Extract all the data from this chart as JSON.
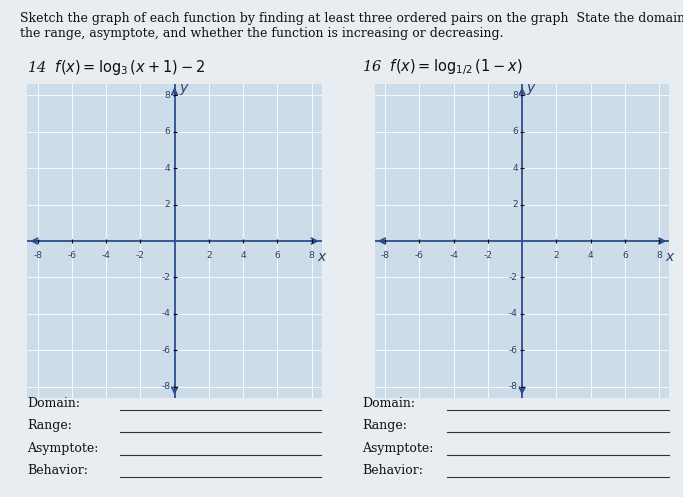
{
  "title_line1": "Sketch the graph of each function by finding at least three ordered pairs on the graph  State the domain,",
  "title_line2": "the range, asymptote, and whether the function is increasing or decreasing.",
  "problem14_label": "14  $f(x) = \\log_3(x + 1) - 2$",
  "problem16_label": "16  $f(x) = \\log_{1/2}(1 - x)$",
  "background_color": "#e8edf2",
  "grid_bg_color": "#ccdce8",
  "grid_line_color": "#ffffff",
  "axis_color": "#2c4a8c",
  "label_color": "#2c3e6b",
  "text_color": "#111111",
  "fields": [
    "Domain:",
    "Range:",
    "Asymptote:",
    "Behavior:"
  ],
  "field_line_color": "#333333",
  "title_fontsize": 9.0,
  "problem_fontsize": 10.5,
  "tick_fontsize": 6.5,
  "axlabel_fontsize": 10,
  "field_fontsize": 9.0
}
